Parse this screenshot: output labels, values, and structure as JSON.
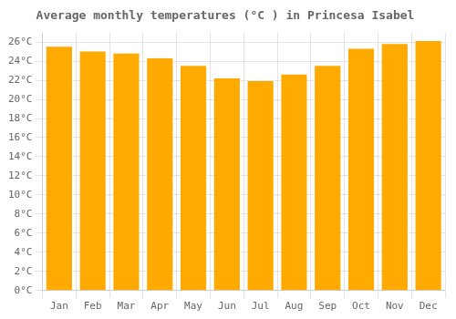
{
  "chart_data": {
    "type": "bar",
    "title": "Average monthly temperatures (°C ) in Princesa Isabel",
    "categories": [
      "Jan",
      "Feb",
      "Mar",
      "Apr",
      "May",
      "Jun",
      "Jul",
      "Aug",
      "Sep",
      "Oct",
      "Nov",
      "Dec"
    ],
    "values": [
      25.5,
      25.0,
      24.8,
      24.3,
      23.5,
      22.2,
      21.9,
      22.6,
      23.5,
      25.3,
      25.8,
      26.1
    ],
    "color": "#FFAA00",
    "ylim": [
      0,
      27
    ],
    "yticks": [
      {
        "value": 0,
        "label": "0°C"
      },
      {
        "value": 2,
        "label": "2°C"
      },
      {
        "value": 4,
        "label": "4°C"
      },
      {
        "value": 6,
        "label": "6°C"
      },
      {
        "value": 8,
        "label": "8°C"
      },
      {
        "value": 10,
        "label": "10°C"
      },
      {
        "value": 12,
        "label": "12°C"
      },
      {
        "value": 14,
        "label": "14°C"
      },
      {
        "value": 16,
        "label": "16°C"
      },
      {
        "value": 18,
        "label": "18°C"
      },
      {
        "value": 20,
        "label": "20°C"
      },
      {
        "value": 22,
        "label": "22°C"
      },
      {
        "value": 24,
        "label": "24°C"
      },
      {
        "value": 26,
        "label": "26°C"
      }
    ],
    "grid": true
  }
}
